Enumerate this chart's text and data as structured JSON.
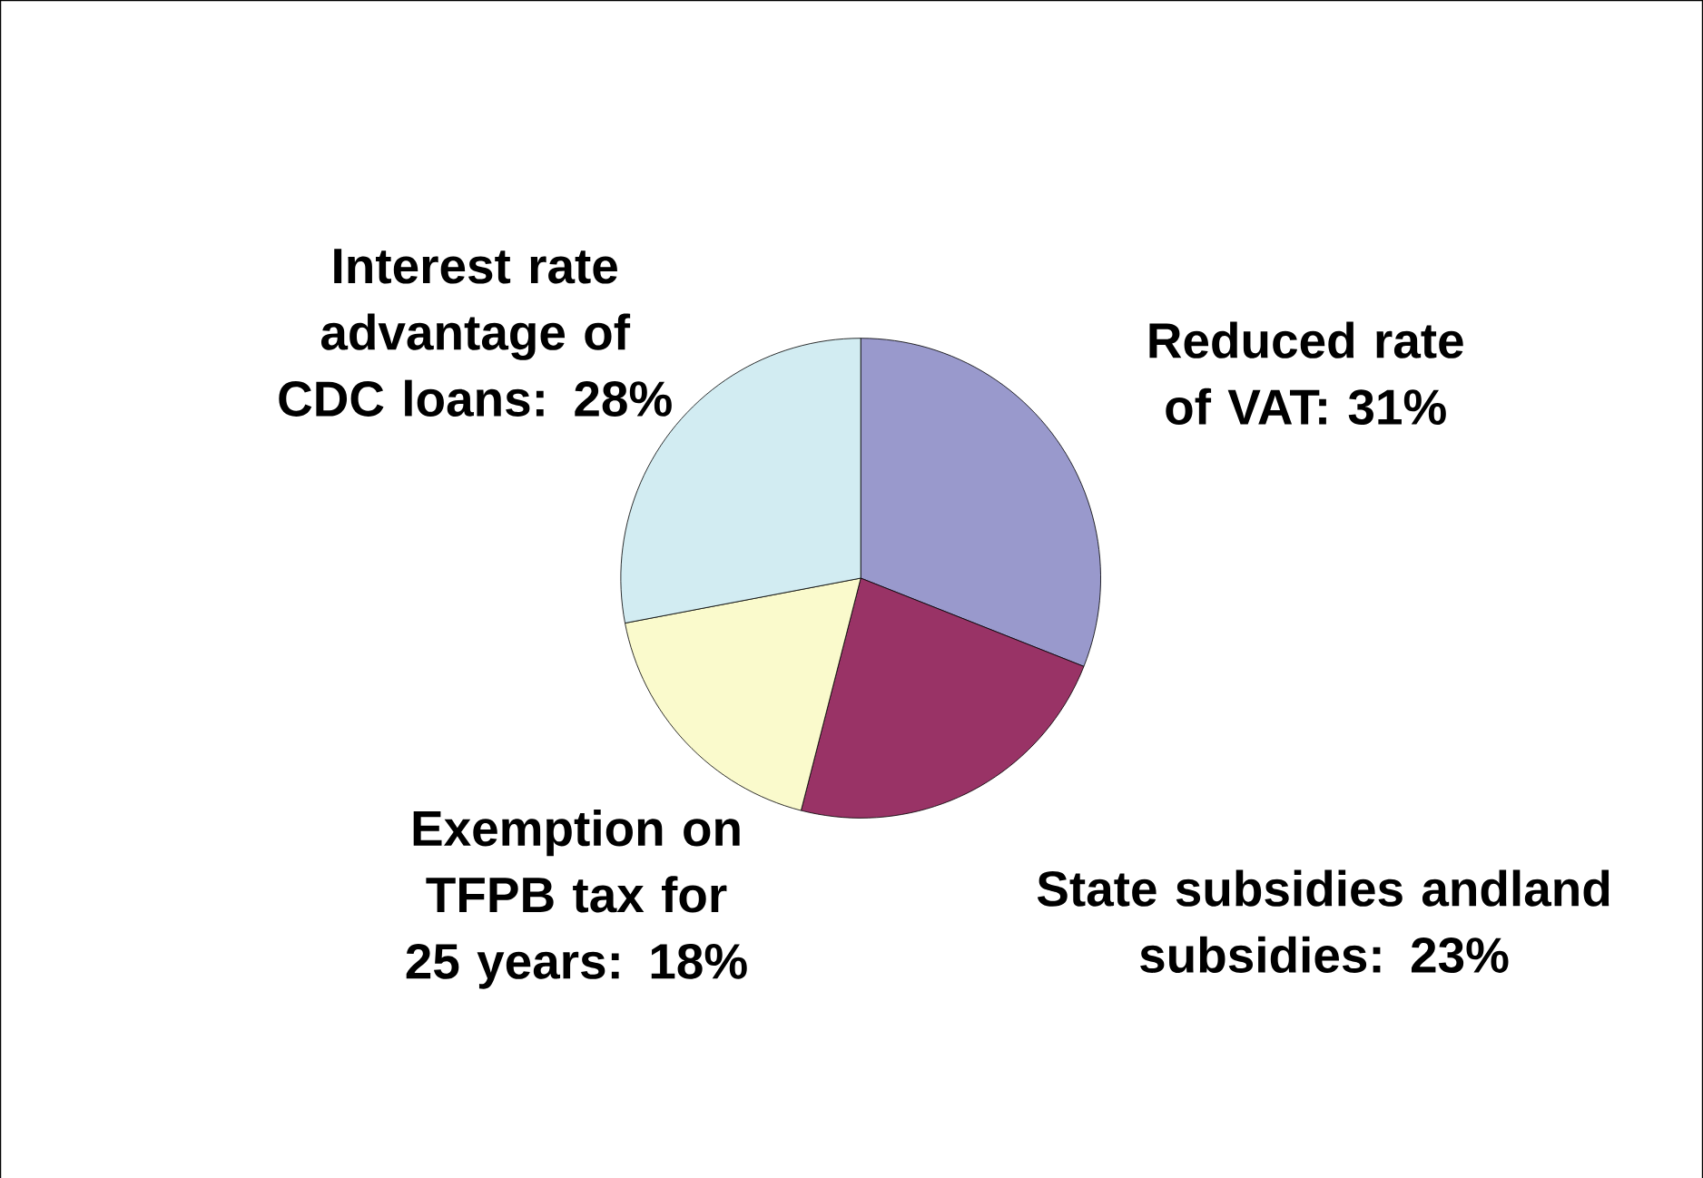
{
  "chart_data": {
    "type": "pie",
    "categories": [
      "Reduced rate of VAT: 31%",
      "State subsidies andland subsidies: 23%",
      "Exemption on TFPB tax for 25 years: 18%",
      "Interest rate advantage of CDC loans: 28%"
    ],
    "values": [
      31,
      23,
      18,
      28
    ],
    "colors": [
      "#9999cc",
      "#993366",
      "#fafacc",
      "#d2ecf2"
    ]
  }
}
